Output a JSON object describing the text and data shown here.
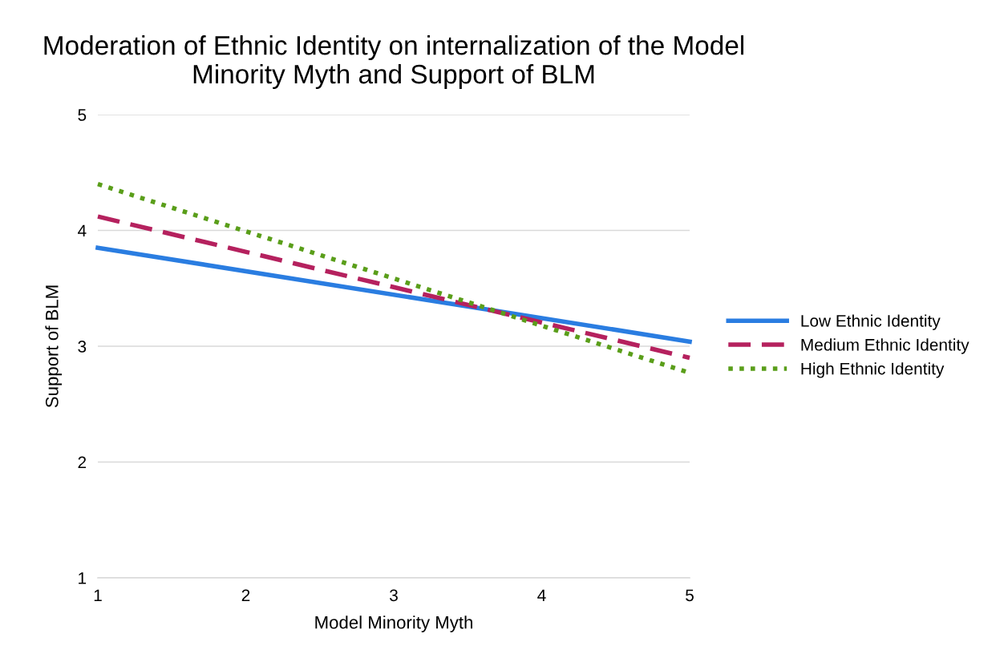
{
  "chart_data": {
    "type": "line",
    "title": "Moderation of Ethnic Identity on internalization of the Model\nMinority Myth and Support of BLM",
    "xlabel": "Model Minority Myth",
    "ylabel": "Support of BLM",
    "x": [
      1,
      5
    ],
    "series": [
      {
        "name": "Low Ethnic Identity",
        "color": "#2a7de1",
        "values": [
          3.85,
          3.04
        ],
        "line_style": "solid"
      },
      {
        "name": "Medium Ethnic Identity",
        "color": "#b5215e",
        "values": [
          4.12,
          2.9
        ],
        "line_style": "dashed"
      },
      {
        "name": "High Ethnic Identity",
        "color": "#5a9e1a",
        "values": [
          4.4,
          2.77
        ],
        "line_style": "dotted"
      }
    ],
    "xlim": [
      1,
      5
    ],
    "xticks": [
      1,
      2,
      3,
      4,
      5
    ],
    "ylim": [
      1,
      5
    ],
    "yticks": [
      1,
      2,
      3,
      4,
      5
    ],
    "grid": "y",
    "legend": "right",
    "marker": "none"
  }
}
